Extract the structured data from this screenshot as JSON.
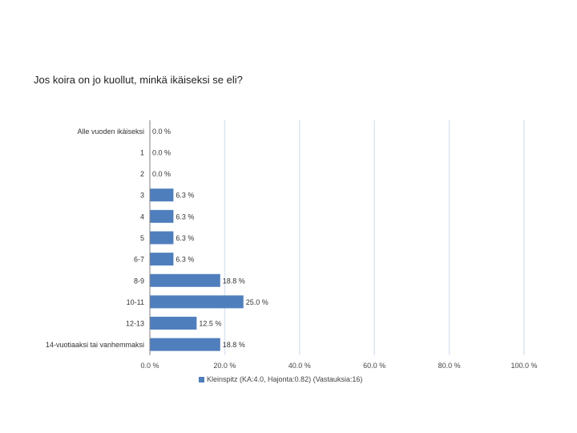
{
  "title": "Jos koira on jo kuollut, minkä ikäiseksi se eli?",
  "chart_data": {
    "type": "bar",
    "orientation": "horizontal",
    "title": "Jos koira on jo kuollut, minkä ikäiseksi se eli?",
    "categories": [
      "Alle vuoden ikäiseksi",
      "1",
      "2",
      "3",
      "4",
      "5",
      "6-7",
      "8-9",
      "10-11",
      "12-13",
      "14-vuotiaaksi tai vanhemmaksi"
    ],
    "series": [
      {
        "name": "Kleinspitz (KA:4.0, Hajonta:0.82) (Vastauksia:16)",
        "values": [
          0.0,
          0.0,
          0.0,
          6.3,
          6.3,
          6.3,
          6.3,
          18.8,
          25.0,
          12.5,
          18.8
        ],
        "labels": [
          "0.0 %",
          "0.0 %",
          "0.0 %",
          "6.3 %",
          "6.3 %",
          "6.3 %",
          "6.3 %",
          "18.8 %",
          "25.0 %",
          "12.5 %",
          "18.8 %"
        ]
      }
    ],
    "xlim": [
      0,
      100
    ],
    "xticks": [
      "0.0 %",
      "20.0 %",
      "40.0 %",
      "60.0 %",
      "80.0 %",
      "100.0 %"
    ],
    "grid": true,
    "legend": "bottom",
    "colors": {
      "bar": "#4f7ebd",
      "grid": "#dbe5f1",
      "axis": "#7f7f7f"
    }
  }
}
